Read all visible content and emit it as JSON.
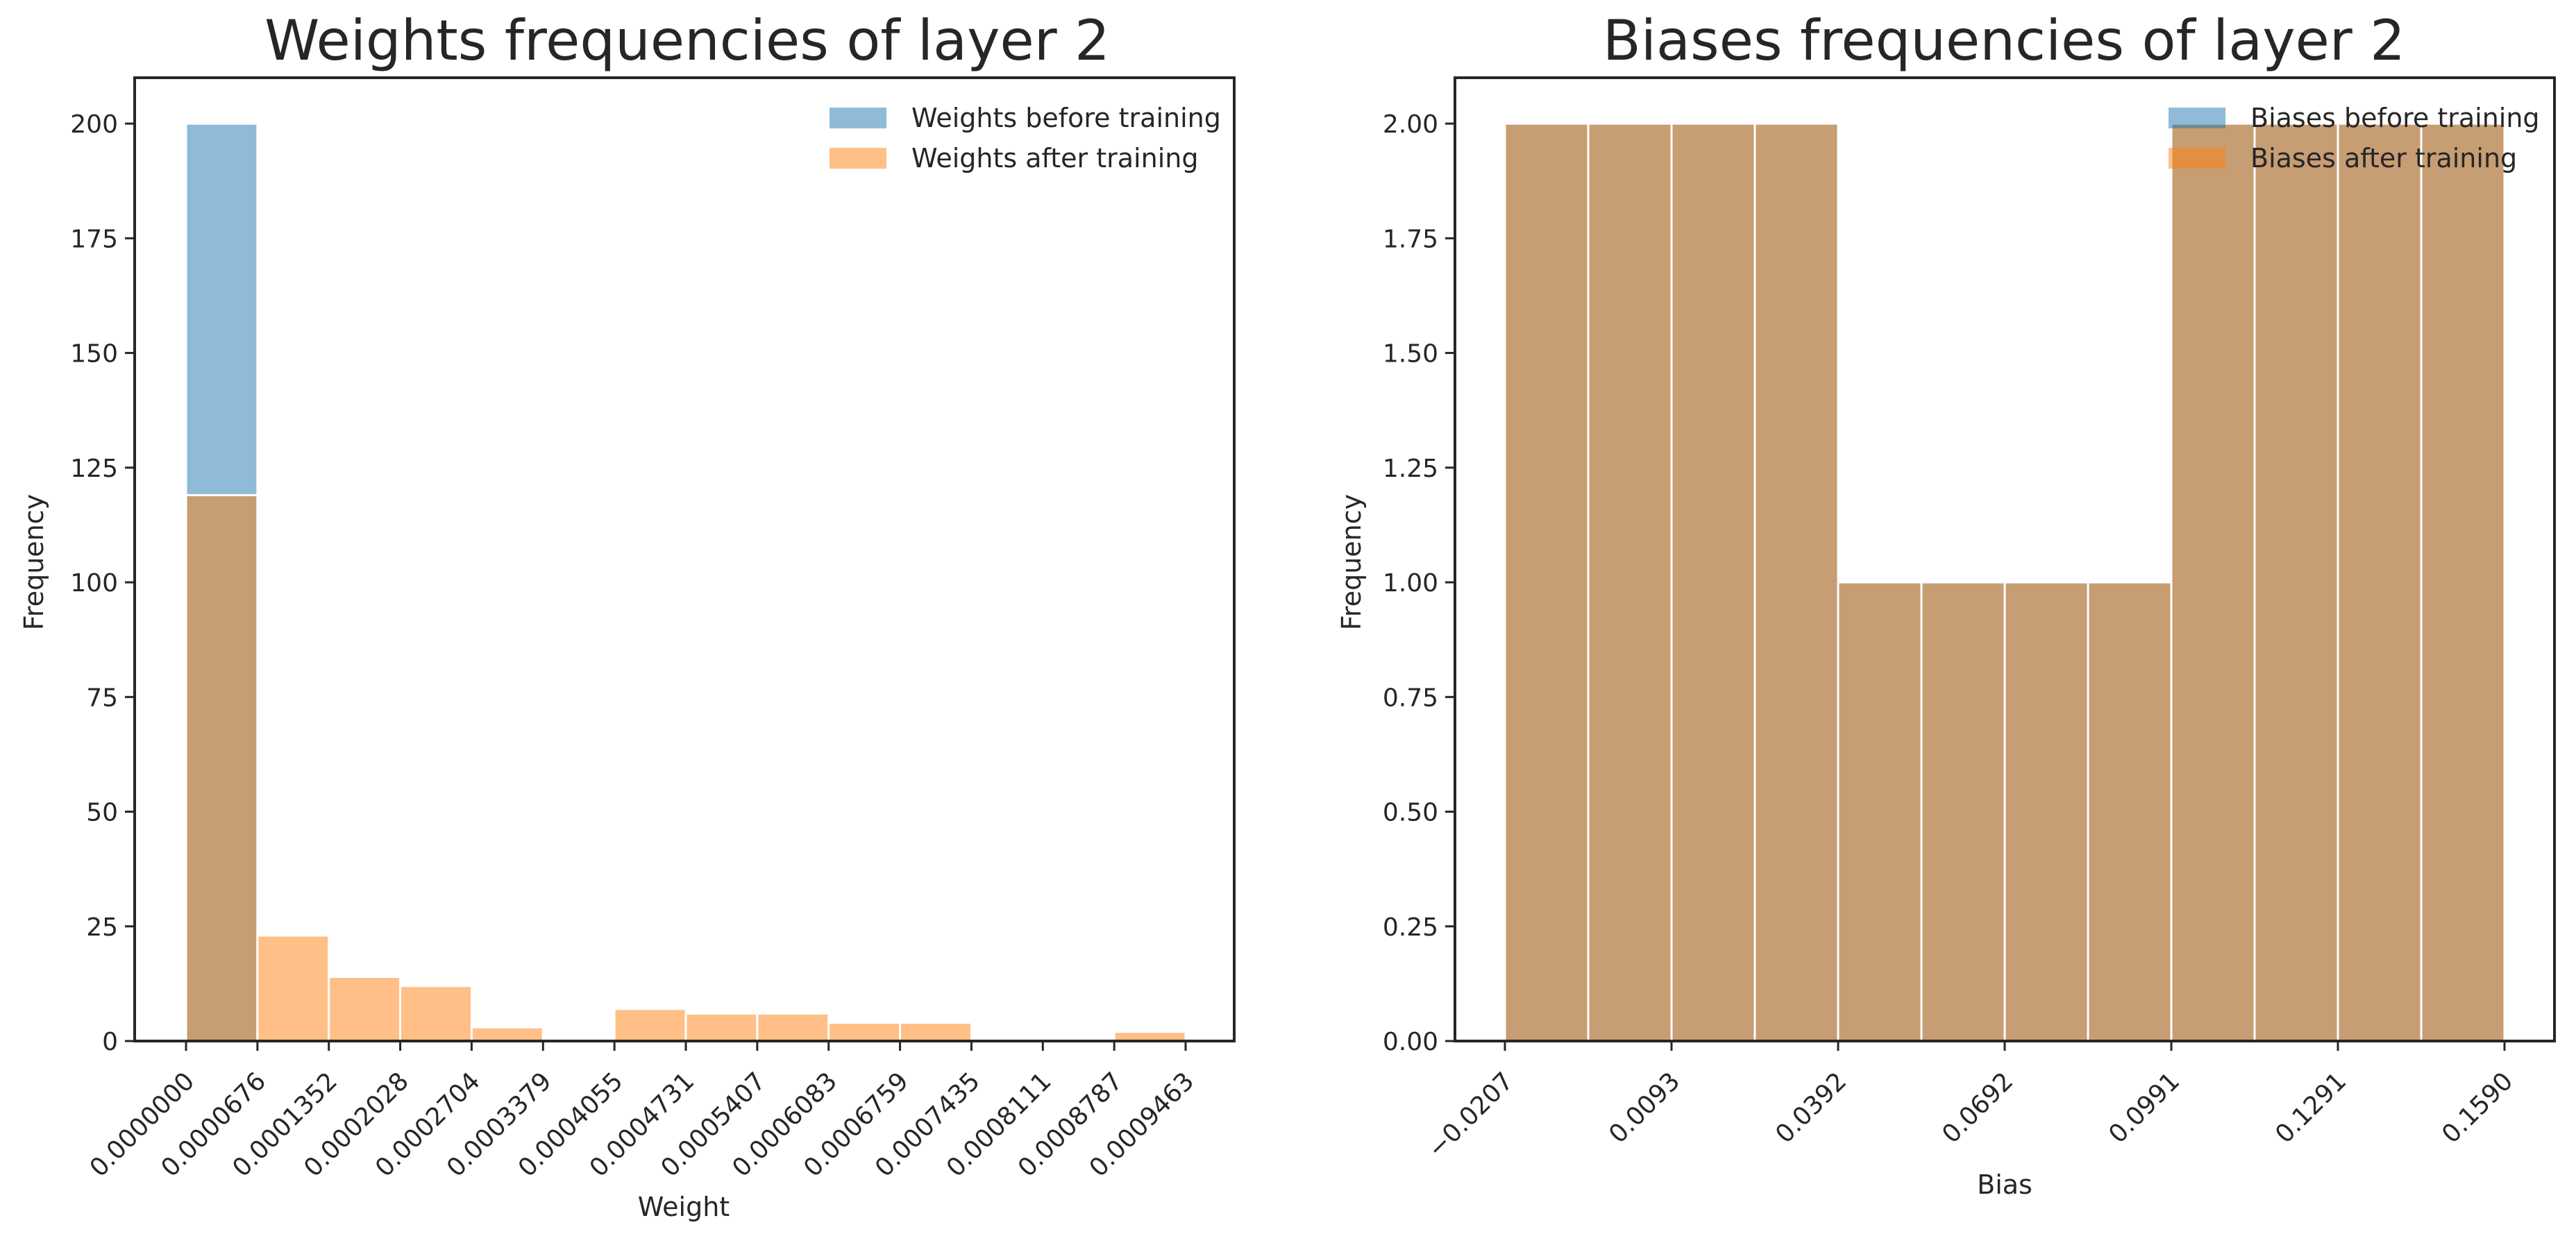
{
  "colors": {
    "before": "#1f77b4",
    "after": "#ff7f0e",
    "axis": "#262626",
    "bar_edge": "#ffffff"
  },
  "chart_data": [
    {
      "type": "bar",
      "title": "Weights frequencies of layer 2",
      "xlabel": "Weight",
      "ylabel": "Frequency",
      "bin_edges": [
        "0.0000000",
        "0.0000676",
        "0.0001352",
        "0.0002028",
        "0.0002704",
        "0.0003379",
        "0.0004055",
        "0.0004731",
        "0.0005407",
        "0.0006083",
        "0.0006759",
        "0.0007435",
        "0.0008111",
        "0.0008787",
        "0.0009463"
      ],
      "yticks": [
        "0",
        "25",
        "50",
        "75",
        "100",
        "125",
        "150",
        "175",
        "200"
      ],
      "ylim": [
        0,
        210
      ],
      "legend_position": "upper-right",
      "grid": false,
      "series": [
        {
          "name": "Weights before training",
          "color_key": "before",
          "values": [
            200,
            0,
            0,
            0,
            0,
            0,
            0,
            0,
            0,
            0,
            0,
            0,
            0,
            0
          ]
        },
        {
          "name": "Weights after training",
          "color_key": "after",
          "values": [
            119,
            23,
            14,
            12,
            3,
            0,
            7,
            6,
            6,
            4,
            4,
            0,
            0,
            2
          ]
        }
      ]
    },
    {
      "type": "bar",
      "title": "Biases frequencies of layer 2",
      "xlabel": "Bias",
      "ylabel": "Frequency",
      "bin_edges": [
        "−0.0207",
        "0.0093",
        "0.0392",
        "0.0692",
        "0.0991",
        "0.1291",
        "0.1590"
      ],
      "tick_indices": [
        0,
        2,
        4,
        6,
        8,
        10,
        12
      ],
      "yticks": [
        "0.00",
        "0.25",
        "0.50",
        "0.75",
        "1.00",
        "1.25",
        "1.50",
        "1.75",
        "2.00"
      ],
      "ylim": [
        0,
        2.1
      ],
      "legend_position": "upper-right",
      "grid": false,
      "series": [
        {
          "name": "Biases before training",
          "color_key": "before",
          "values": [
            2,
            2,
            2,
            2,
            1,
            1,
            1,
            1,
            2,
            2,
            2,
            2
          ]
        },
        {
          "name": "Biases after training",
          "color_key": "after",
          "values": [
            2,
            2,
            2,
            2,
            1,
            1,
            1,
            1,
            2,
            2,
            2,
            2
          ]
        }
      ]
    }
  ]
}
